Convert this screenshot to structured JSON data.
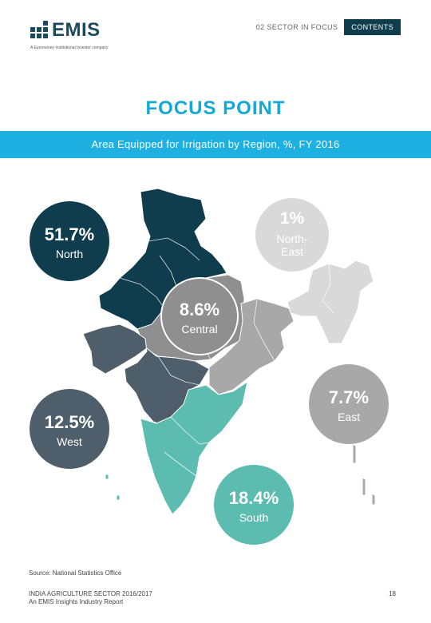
{
  "header": {
    "brand": "EMIS",
    "tagline": "A Euromoney Institutional Investor company",
    "section_label": "02 SECTOR IN FOCUS",
    "contents_label": "CONTENTS"
  },
  "page": {
    "focus_title": "FOCUS POINT",
    "chart_title": "Area Equipped for Irrigation by Region, %, FY 2016",
    "source": "Source:  National Statistics Office",
    "footer_line1": "INDIA AGRICULTURE SECTOR 2016/2017",
    "footer_line2": "An EMIS Insights Industry Report",
    "page_number": "18"
  },
  "chart_data": {
    "type": "pie",
    "title": "Area Equipped for Irrigation by Region, %, FY 2016",
    "unit": "%",
    "categories": [
      "North",
      "North-East",
      "Central",
      "West",
      "East",
      "South"
    ],
    "values": [
      51.7,
      1,
      8.6,
      12.5,
      7.7,
      18.4
    ],
    "labels": [
      "51.7%",
      "1%",
      "8.6%",
      "12.5%",
      "7.7%",
      "18.4%"
    ],
    "region_labels": [
      "North",
      "North-",
      "East",
      "Central",
      "West",
      "East",
      "South"
    ],
    "colors": {
      "North": "#0f3d4d",
      "North-East": "#d9d9d9",
      "Central": "#8f8f8f",
      "West": "#4e5e6a",
      "East": "#a8a8a8",
      "South": "#5dbcb0"
    }
  }
}
